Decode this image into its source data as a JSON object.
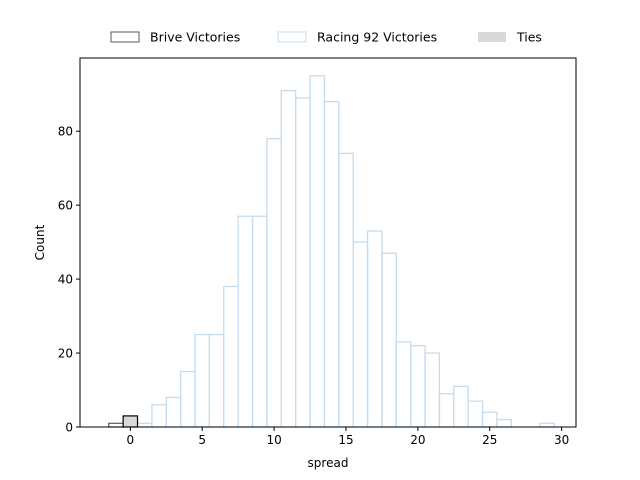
{
  "chart_data": {
    "type": "bar",
    "xlabel": "spread",
    "ylabel": "Count",
    "xlim": [
      -3.5,
      31
    ],
    "ylim": [
      0,
      99.8
    ],
    "xticks": [
      0,
      5,
      10,
      15,
      20,
      25,
      30
    ],
    "yticks": [
      0,
      20,
      40,
      60,
      80
    ],
    "bin_width": 1,
    "grid": false,
    "legend_position": "top-center",
    "series": [
      {
        "name": "Brive Victories",
        "color": "#5a5a5a",
        "fill": "none",
        "bins": [
          [
            -1.5,
            1
          ]
        ]
      },
      {
        "name": "Racing 92 Victories",
        "color": "#c5dcf0",
        "fill": "none",
        "bins": [
          [
            0.5,
            1
          ],
          [
            1.5,
            6
          ],
          [
            2.5,
            8
          ],
          [
            3.5,
            15
          ],
          [
            4.5,
            25
          ],
          [
            5.5,
            25
          ],
          [
            6.5,
            38
          ],
          [
            7.5,
            57
          ],
          [
            8.5,
            57
          ],
          [
            9.5,
            78
          ],
          [
            10.5,
            91
          ],
          [
            11.5,
            89
          ],
          [
            12.5,
            95
          ],
          [
            13.5,
            88
          ],
          [
            14.5,
            74
          ],
          [
            15.5,
            50
          ],
          [
            16.5,
            53
          ],
          [
            17.5,
            47
          ],
          [
            18.5,
            23
          ],
          [
            19.5,
            22
          ],
          [
            20.5,
            20
          ],
          [
            21.5,
            9
          ],
          [
            22.5,
            11
          ],
          [
            23.5,
            7
          ],
          [
            24.5,
            4
          ],
          [
            25.5,
            2
          ],
          [
            28.5,
            1
          ]
        ]
      },
      {
        "name": "Ties",
        "color": "#000000",
        "fill": "#d9d9d9",
        "bins": [
          [
            -0.5,
            3
          ]
        ]
      }
    ]
  }
}
